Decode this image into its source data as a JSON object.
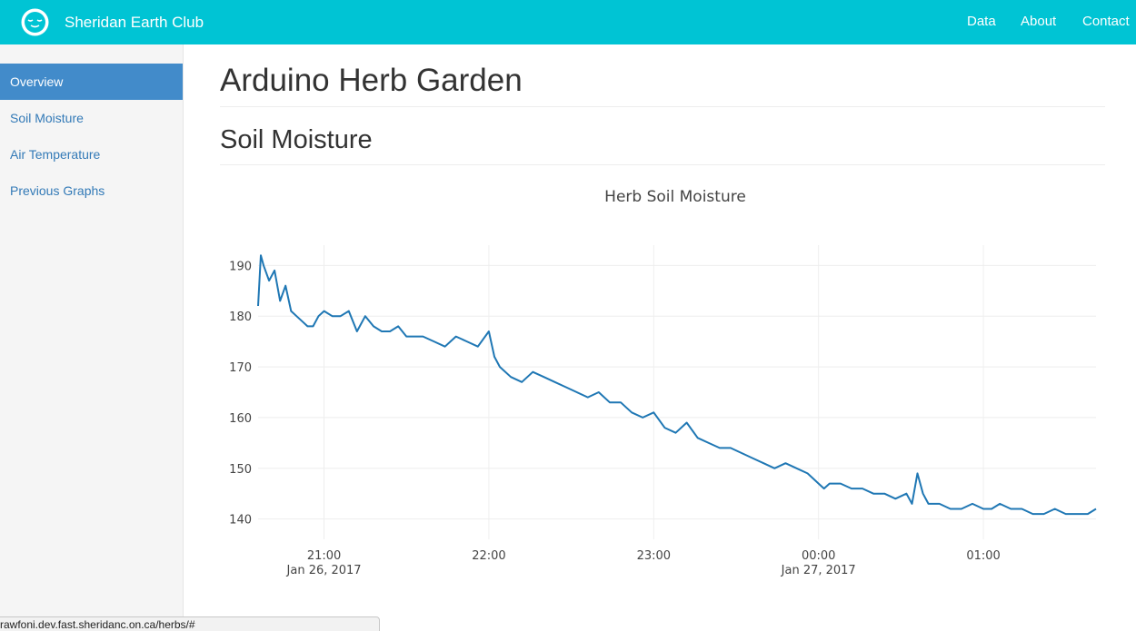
{
  "navbar": {
    "brand": "Sheridan Earth Club",
    "links": [
      "Data",
      "About",
      "Contact"
    ]
  },
  "sidebar": {
    "items": [
      "Overview",
      "Soil Moisture",
      "Air Temperature",
      "Previous Graphs"
    ],
    "active": "Overview"
  },
  "main": {
    "title": "Arduino Herb Garden",
    "section": "Soil Moisture"
  },
  "status_url": "rawfoni.dev.fast.sheridanc.on.ca/herbs/#",
  "colors": {
    "navbar": "#00c4d4",
    "active": "#428bca",
    "link": "#337ab7",
    "line": "#1f77b4"
  },
  "chart_data": {
    "type": "line",
    "title": "Herb Soil Moisture",
    "xlabel": "",
    "ylabel": "",
    "ylim": [
      136,
      194
    ],
    "yticks": [
      140,
      150,
      160,
      170,
      180,
      190
    ],
    "xticks": [
      {
        "t": "21:00",
        "date": "Jan 26, 2017"
      },
      {
        "t": "22:00",
        "date": ""
      },
      {
        "t": "23:00",
        "date": ""
      },
      {
        "t": "00:00",
        "date": "Jan 27, 2017"
      },
      {
        "t": "01:00",
        "date": ""
      }
    ],
    "xrange": [
      "2017-01-26 20:36",
      "2017-01-27 01:41"
    ],
    "grid": true,
    "series": [
      {
        "x": [
          "20:36",
          "20:37",
          "20:38",
          "20:40",
          "20:42",
          "20:44",
          "20:46",
          "20:48",
          "20:50",
          "20:52",
          "20:54",
          "20:56",
          "20:58",
          "21:00",
          "21:03",
          "21:06",
          "21:09",
          "21:12",
          "21:15",
          "21:18",
          "21:21",
          "21:24",
          "21:27",
          "21:30",
          "21:33",
          "21:36",
          "21:40",
          "21:44",
          "21:48",
          "21:52",
          "21:56",
          "22:00",
          "22:02",
          "22:04",
          "22:08",
          "22:12",
          "22:16",
          "22:20",
          "22:24",
          "22:28",
          "22:32",
          "22:36",
          "22:40",
          "22:44",
          "22:48",
          "22:52",
          "22:56",
          "23:00",
          "23:04",
          "23:08",
          "23:12",
          "23:16",
          "23:20",
          "23:24",
          "23:28",
          "23:32",
          "23:36",
          "23:40",
          "23:44",
          "23:48",
          "23:52",
          "23:56",
          "00:00",
          "00:02",
          "00:04",
          "00:08",
          "00:12",
          "00:16",
          "00:20",
          "00:24",
          "00:28",
          "00:32",
          "00:34",
          "00:36",
          "00:38",
          "00:40",
          "00:44",
          "00:48",
          "00:52",
          "00:56",
          "01:00",
          "01:03",
          "01:06",
          "01:10",
          "01:14",
          "01:18",
          "01:22",
          "01:26",
          "01:30",
          "01:34",
          "01:38",
          "01:41"
        ],
        "y": [
          182,
          192,
          190,
          187,
          189,
          183,
          186,
          181,
          180,
          179,
          178,
          178,
          180,
          181,
          180,
          180,
          181,
          177,
          180,
          178,
          177,
          177,
          178,
          176,
          176,
          176,
          175,
          174,
          176,
          175,
          174,
          177,
          172,
          170,
          168,
          167,
          169,
          168,
          167,
          166,
          165,
          164,
          165,
          163,
          163,
          161,
          160,
          161,
          158,
          157,
          159,
          156,
          155,
          154,
          154,
          153,
          152,
          151,
          150,
          151,
          150,
          149,
          147,
          146,
          147,
          147,
          146,
          146,
          145,
          145,
          144,
          145,
          143,
          149,
          145,
          143,
          143,
          142,
          142,
          143,
          142,
          142,
          143,
          142,
          142,
          141,
          141,
          142,
          141,
          141,
          141,
          142
        ]
      }
    ]
  }
}
